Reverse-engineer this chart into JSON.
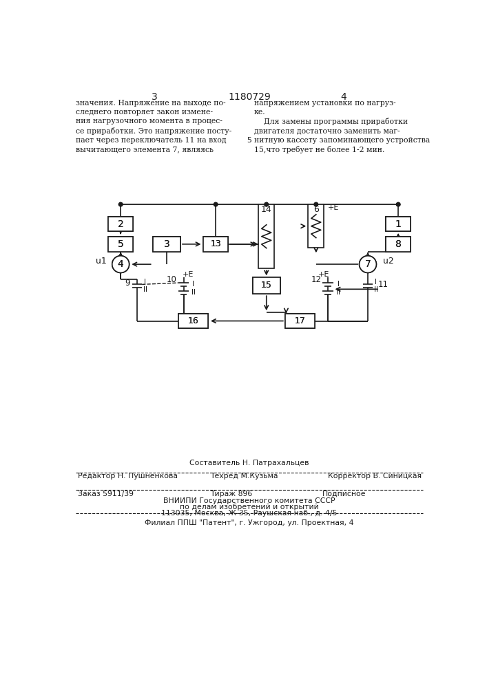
{
  "bg_color": "#ffffff",
  "text_color": "#1a1a1a",
  "line_color": "#1a1a1a",
  "page_number_left": "3",
  "page_number_center": "1180729",
  "page_number_right": "4",
  "text_left": "значения. Напряжение на выходе по-\nследнего повторяет закон изменe-\nния нагрузочного момента в процес-\nсе приработки. Это напряжение посту-\nпает через переключатель 11 на вход\nвычитающего элемента 7, являясь",
  "text_right": "напряжением установки по нагруз-\nке.\n    Для замены программы приработки\nдвигателя достаточно заменить маг-\nнитную кассету запоминающего устройства\n15,что требует не более 1-2 мин.",
  "text_right_number": "5",
  "footer_line1": "Составитель Н. Патрахальцев",
  "footer_line2_left": "Редактор Н. Пушненкова",
  "footer_line2_mid": "Техред М.Кузьма",
  "footer_line2_right": "Корректор В. Синицкая",
  "footer_line3_left": "Заказ 5911/39",
  "footer_line3_mid": "Тираж 896",
  "footer_line3_right": "Подписное",
  "footer_line4": "ВНИИПИ Государственного комитета СССР",
  "footer_line5": "по делам изобретений и открытий",
  "footer_line6": "113035, Москва, Ж-35, Раушская наб., д. 4/5",
  "footer_line7": "Филиал ППШ \"Патент\", г. Ужгород, ул. Проектная, 4"
}
